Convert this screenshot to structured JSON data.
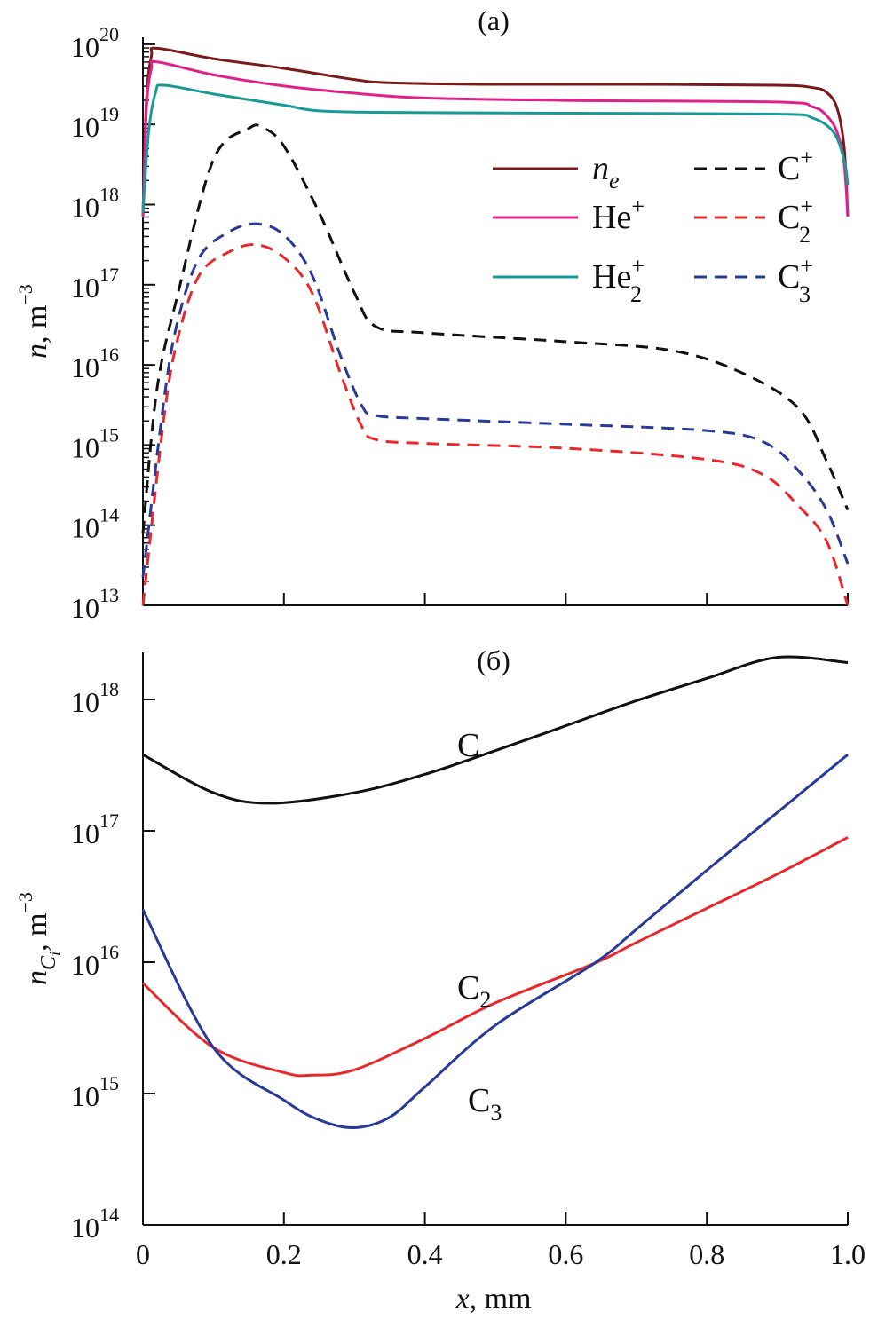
{
  "chart_data": [
    {
      "type": "line",
      "panel_label": "(a)",
      "ylabel": {
        "var": "n",
        "unit": ", m",
        "exp": "−3"
      },
      "xlabel": "",
      "yscale": "log",
      "ylim_log10": [
        13,
        20
      ],
      "xlim": [
        0,
        1.0
      ],
      "ytick_exponents": [
        "13",
        "14",
        "15",
        "16",
        "17",
        "18",
        "19",
        "20"
      ],
      "legend": {
        "placement": "upper-right, two columns"
      },
      "series": [
        {
          "name": "n_e",
          "label_main": "n",
          "label_sub": "e",
          "label_sup": "",
          "italic": true,
          "color": "#7a1a1a",
          "dash": false,
          "x": [
            0,
            0.005,
            0.012,
            0.02,
            0.1,
            0.2,
            0.3,
            0.35,
            0.5,
            0.7,
            0.9,
            0.95,
            0.97,
            0.985,
            0.995,
            1.0
          ],
          "log10": [
            17.85,
            19.3,
            19.85,
            19.95,
            19.82,
            19.7,
            19.56,
            19.52,
            19.5,
            19.5,
            19.49,
            19.46,
            19.4,
            19.2,
            18.7,
            17.85
          ]
        },
        {
          "name": "He+",
          "label_main": "He",
          "label_sub": "",
          "label_sup": "+",
          "italic": false,
          "color": "#e0218a",
          "dash": false,
          "x": [
            0,
            0.005,
            0.012,
            0.02,
            0.1,
            0.2,
            0.3,
            0.4,
            0.6,
            0.9,
            0.95,
            0.97,
            0.985,
            0.995,
            1.0
          ],
          "log10": [
            17.85,
            19.2,
            19.7,
            19.78,
            19.62,
            19.48,
            19.39,
            19.33,
            19.3,
            19.28,
            19.22,
            19.11,
            18.9,
            18.5,
            17.85
          ]
        },
        {
          "name": "He2+",
          "label_main": "He",
          "label_sub": "2",
          "label_sup": "+",
          "italic": false,
          "color": "#1a9a96",
          "dash": false,
          "x": [
            0,
            0.008,
            0.018,
            0.03,
            0.1,
            0.2,
            0.25,
            0.35,
            0.6,
            0.9,
            0.95,
            0.98,
            0.995,
            1.0
          ],
          "log10": [
            17.9,
            18.9,
            19.4,
            19.49,
            19.38,
            19.24,
            19.17,
            19.15,
            19.14,
            19.13,
            19.08,
            18.9,
            18.55,
            18.25
          ]
        },
        {
          "name": "C+",
          "label_main": "C",
          "label_sub": "",
          "label_sup": "+",
          "italic": false,
          "color": "#111111",
          "dash": true,
          "x": [
            0,
            0.02,
            0.05,
            0.1,
            0.15,
            0.17,
            0.2,
            0.25,
            0.3,
            0.33,
            0.4,
            0.6,
            0.75,
            0.85,
            0.93,
            0.97,
            1.0
          ],
          "log10": [
            13.9,
            15.7,
            16.9,
            18.56,
            18.95,
            18.96,
            18.73,
            17.9,
            16.9,
            16.48,
            16.4,
            16.29,
            16.18,
            15.9,
            15.46,
            14.8,
            14.19
          ]
        },
        {
          "name": "C2+",
          "label_main": "C",
          "label_sub": "2",
          "label_sup": "+",
          "italic": false,
          "color": "#e8282a",
          "dash": true,
          "x": [
            0,
            0.03,
            0.05,
            0.08,
            0.12,
            0.16,
            0.2,
            0.24,
            0.28,
            0.31,
            0.33,
            0.4,
            0.6,
            0.8,
            0.88,
            0.93,
            0.97,
            1.0
          ],
          "log10": [
            13.0,
            15.35,
            16.35,
            17.12,
            17.4,
            17.5,
            17.34,
            16.9,
            15.9,
            15.24,
            15.07,
            15.02,
            14.96,
            14.82,
            14.63,
            14.24,
            13.8,
            13.0
          ]
        },
        {
          "name": "C3+",
          "label_main": "C",
          "label_sub": "3",
          "label_sup": "+",
          "italic": false,
          "color": "#2a3a9a",
          "dash": true,
          "x": [
            0,
            0.03,
            0.05,
            0.08,
            0.12,
            0.16,
            0.2,
            0.24,
            0.28,
            0.31,
            0.33,
            0.4,
            0.6,
            0.8,
            0.88,
            0.93,
            0.97,
            1.0
          ],
          "log10": [
            13.35,
            15.57,
            16.57,
            17.34,
            17.65,
            17.76,
            17.62,
            17.12,
            16.12,
            15.5,
            15.37,
            15.33,
            15.26,
            15.18,
            15.04,
            14.68,
            14.19,
            13.52
          ]
        }
      ]
    },
    {
      "type": "line",
      "panel_label": "(б)",
      "ylabel": {
        "var": "n",
        "sub": "C",
        "subsub": "i",
        "unit": ", m",
        "exp": "−3"
      },
      "xlabel": {
        "var": "x",
        "unit": ", mm"
      },
      "yscale": "log",
      "ylim_log10": [
        14,
        18.36
      ],
      "xlim": [
        0,
        1.0
      ],
      "ytick_exponents": [
        "14",
        "15",
        "16",
        "17",
        "18"
      ],
      "xticks": [
        "0",
        "0.2",
        "0.4",
        "0.6",
        "0.8",
        "1.0"
      ],
      "series": [
        {
          "name": "C",
          "label_main": "C",
          "label_sub": "",
          "color": "#111111",
          "x": [
            0,
            0.1,
            0.18,
            0.3,
            0.4,
            0.5,
            0.6,
            0.7,
            0.8,
            0.9,
            1.0
          ],
          "log10": [
            17.58,
            17.29,
            17.21,
            17.29,
            17.43,
            17.61,
            17.8,
            17.99,
            18.16,
            18.32,
            18.28
          ]
        },
        {
          "name": "C2",
          "label_main": "C",
          "label_sub": "2",
          "color": "#e8282a",
          "x": [
            0,
            0.1,
            0.2,
            0.24,
            0.3,
            0.4,
            0.5,
            0.64,
            0.7,
            0.8,
            0.9,
            1.0
          ],
          "log10": [
            15.84,
            15.35,
            15.16,
            15.14,
            15.18,
            15.42,
            15.69,
            15.99,
            16.15,
            16.41,
            16.67,
            16.95
          ]
        },
        {
          "name": "C3",
          "label_main": "C",
          "label_sub": "3",
          "color": "#2a3a9a",
          "x": [
            0,
            0.1,
            0.2,
            0.25,
            0.3,
            0.35,
            0.4,
            0.5,
            0.64,
            0.7,
            0.8,
            0.9,
            1.0
          ],
          "log10": [
            16.4,
            15.35,
            14.95,
            14.8,
            14.74,
            14.82,
            15.05,
            15.52,
            15.99,
            16.25,
            16.7,
            17.14,
            17.58
          ]
        }
      ]
    }
  ]
}
